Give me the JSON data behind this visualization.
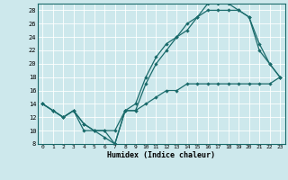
{
  "xlabel": "Humidex (Indice chaleur)",
  "bg_color": "#cde8ec",
  "line_color": "#1a6b6b",
  "grid_color": "#ffffff",
  "xlim": [
    -0.5,
    23.5
  ],
  "ylim": [
    8,
    29
  ],
  "yticks": [
    8,
    10,
    12,
    14,
    16,
    18,
    20,
    22,
    24,
    26,
    28
  ],
  "xticks": [
    0,
    1,
    2,
    3,
    4,
    5,
    6,
    7,
    8,
    9,
    10,
    11,
    12,
    13,
    14,
    15,
    16,
    17,
    18,
    19,
    20,
    21,
    22,
    23
  ],
  "line1_x": [
    0,
    1,
    2,
    3,
    4,
    5,
    6,
    7,
    8,
    9,
    10,
    11,
    12,
    13,
    14,
    15,
    16,
    17,
    18,
    19,
    20,
    21,
    22,
    23
  ],
  "line1_y": [
    14,
    13,
    12,
    13,
    10,
    10,
    10,
    8,
    13,
    14,
    18,
    21,
    23,
    24,
    26,
    27,
    29,
    29,
    29,
    28,
    27,
    23,
    20,
    18
  ],
  "line2_x": [
    0,
    1,
    2,
    3,
    4,
    5,
    6,
    7,
    8,
    9,
    10,
    11,
    12,
    13,
    14,
    15,
    16,
    17,
    18,
    19,
    20,
    21,
    22,
    23
  ],
  "line2_y": [
    14,
    13,
    12,
    13,
    11,
    10,
    9,
    8,
    13,
    13,
    17,
    20,
    22,
    24,
    25,
    27,
    28,
    28,
    28,
    28,
    27,
    22,
    20,
    18
  ],
  "line3_x": [
    0,
    1,
    2,
    3,
    4,
    5,
    6,
    7,
    8,
    9,
    10,
    11,
    12,
    13,
    14,
    15,
    16,
    17,
    18,
    19,
    20,
    21,
    22,
    23
  ],
  "line3_y": [
    14,
    13,
    12,
    13,
    11,
    10,
    10,
    10,
    13,
    13,
    14,
    15,
    16,
    16,
    17,
    17,
    17,
    17,
    17,
    17,
    17,
    17,
    17,
    18
  ]
}
